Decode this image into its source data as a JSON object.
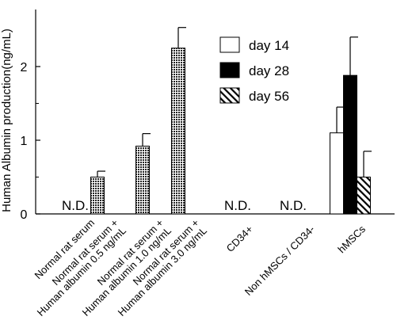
{
  "chart_data": {
    "type": "bar",
    "title": "",
    "xlabel": "",
    "ylabel": "Human  Albumin production(ng/mL)",
    "ylim": [
      0,
      2.5
    ],
    "yticks": [
      "0",
      "1",
      "2"
    ],
    "grid": false,
    "legend_position": "top-right",
    "legend": [
      {
        "name": "day 14",
        "fill": "white"
      },
      {
        "name": "day 28",
        "fill": "black"
      },
      {
        "name": "day 56",
        "fill": "hatched"
      }
    ],
    "categories": [
      {
        "label": "Normal rat serum",
        "bars": [],
        "note": "N.D."
      },
      {
        "label": "Normal rat serum +\nHuman albumin 0.5 ng/mL",
        "bars": [
          {
            "value": 0.5,
            "error": 0.08,
            "fill": "dotted"
          }
        ]
      },
      {
        "label": "Normal rat serum +\nHuman albumin 1.0 ng/mL",
        "bars": [
          {
            "value": 0.92,
            "error": 0.17,
            "fill": "dotted"
          }
        ]
      },
      {
        "label": "Normal rat serum +\nHuman albumin 3.0 ng/mL",
        "bars": [
          {
            "value": 2.25,
            "error": 0.28,
            "fill": "dotted"
          }
        ]
      },
      {
        "label": "CD34+",
        "bars": [],
        "note": "N.D."
      },
      {
        "label": "Non hMSCs / CD34-",
        "bars": [],
        "note": "N.D."
      },
      {
        "label": "hMSCs",
        "bars": [
          {
            "series": "day 14",
            "value": 1.1,
            "error": 0.35,
            "fill": "white"
          },
          {
            "series": "day 28",
            "value": 1.88,
            "error": 0.52,
            "fill": "black"
          },
          {
            "series": "day 56",
            "value": 0.5,
            "error": 0.35,
            "fill": "hatched"
          }
        ]
      }
    ]
  }
}
